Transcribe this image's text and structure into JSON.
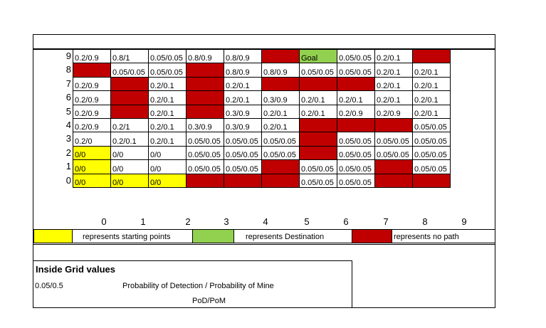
{
  "grid": {
    "rows": [
      {
        "label": "9",
        "cells": [
          {
            "t": "0.2/0.9",
            "c": ""
          },
          {
            "t": "0.8/1",
            "c": ""
          },
          {
            "t": "0.05/0.05",
            "c": ""
          },
          {
            "t": "0.8/0.9",
            "c": ""
          },
          {
            "t": "0.8/0.9",
            "c": ""
          },
          {
            "t": "",
            "c": "red"
          },
          {
            "t": "Goal",
            "c": "green"
          },
          {
            "t": "0.05/0.05",
            "c": ""
          },
          {
            "t": "0.2/0.1",
            "c": ""
          },
          {
            "t": "",
            "c": "red"
          }
        ]
      },
      {
        "label": "8",
        "cells": [
          {
            "t": "",
            "c": "red"
          },
          {
            "t": "0.05/0.05",
            "c": ""
          },
          {
            "t": "0.05/0.05",
            "c": ""
          },
          {
            "t": "",
            "c": "red"
          },
          {
            "t": "0.8/0.9",
            "c": ""
          },
          {
            "t": "0.8/0.9",
            "c": ""
          },
          {
            "t": "0.05/0.05",
            "c": ""
          },
          {
            "t": "0.05/0.05",
            "c": ""
          },
          {
            "t": "0.2/0.1",
            "c": ""
          },
          {
            "t": "0.2/0.1",
            "c": ""
          }
        ]
      },
      {
        "label": "7",
        "cells": [
          {
            "t": "0.2/0.9",
            "c": ""
          },
          {
            "t": "",
            "c": "red"
          },
          {
            "t": "0.2/0.1",
            "c": ""
          },
          {
            "t": "",
            "c": "red"
          },
          {
            "t": "0.2/0.1",
            "c": ""
          },
          {
            "t": "",
            "c": "red"
          },
          {
            "t": "",
            "c": "red"
          },
          {
            "t": "",
            "c": "red"
          },
          {
            "t": "0.2/0.1",
            "c": ""
          },
          {
            "t": "0.2/0.1",
            "c": ""
          }
        ]
      },
      {
        "label": "6",
        "cells": [
          {
            "t": "0.2/0.9",
            "c": ""
          },
          {
            "t": "",
            "c": "red"
          },
          {
            "t": "0.2/0.1",
            "c": ""
          },
          {
            "t": "",
            "c": "red"
          },
          {
            "t": "0.2/0.1",
            "c": ""
          },
          {
            "t": "0.3/0.9",
            "c": ""
          },
          {
            "t": "0.2/0.1",
            "c": ""
          },
          {
            "t": "0.2/0.1",
            "c": ""
          },
          {
            "t": "0.2/0.1",
            "c": ""
          },
          {
            "t": "0.2/0.1",
            "c": ""
          }
        ]
      },
      {
        "label": "5",
        "cells": [
          {
            "t": "0.2/0.9",
            "c": ""
          },
          {
            "t": "",
            "c": "red"
          },
          {
            "t": "0.2/0.1",
            "c": ""
          },
          {
            "t": "",
            "c": "red"
          },
          {
            "t": "0.3/0.9",
            "c": ""
          },
          {
            "t": "0.2/0.1",
            "c": ""
          },
          {
            "t": "0.2/0.1",
            "c": ""
          },
          {
            "t": "0.2/0.9",
            "c": ""
          },
          {
            "t": "0.2/0.9",
            "c": ""
          },
          {
            "t": "0.2/0.1",
            "c": ""
          }
        ]
      },
      {
        "label": "4",
        "cells": [
          {
            "t": "0.2/0.9",
            "c": ""
          },
          {
            "t": "0.2/1",
            "c": ""
          },
          {
            "t": "0.2/0.1",
            "c": ""
          },
          {
            "t": "0.3/0.9",
            "c": ""
          },
          {
            "t": "0.3/0.9",
            "c": ""
          },
          {
            "t": "0.2/0.1",
            "c": ""
          },
          {
            "t": "",
            "c": "red"
          },
          {
            "t": "",
            "c": "red"
          },
          {
            "t": "",
            "c": "red"
          },
          {
            "t": "0.05/0.05",
            "c": ""
          }
        ]
      },
      {
        "label": "3",
        "cells": [
          {
            "t": "0.2/0",
            "c": ""
          },
          {
            "t": "0.2/0.1",
            "c": ""
          },
          {
            "t": "0.2/0.1",
            "c": ""
          },
          {
            "t": "0.05/0.05",
            "c": ""
          },
          {
            "t": "0.05/0.05",
            "c": ""
          },
          {
            "t": "0.05/0.05",
            "c": ""
          },
          {
            "t": "",
            "c": "red"
          },
          {
            "t": "0.05/0.05",
            "c": ""
          },
          {
            "t": "0.05/0.05",
            "c": ""
          },
          {
            "t": "0.05/0.05",
            "c": ""
          }
        ]
      },
      {
        "label": "2",
        "cells": [
          {
            "t": "0/0",
            "c": "yellow"
          },
          {
            "t": "0/0",
            "c": ""
          },
          {
            "t": "0/0",
            "c": ""
          },
          {
            "t": "0.05/0.05",
            "c": ""
          },
          {
            "t": "0.05/0.05",
            "c": ""
          },
          {
            "t": "0.05/0.05",
            "c": ""
          },
          {
            "t": "",
            "c": "red"
          },
          {
            "t": "0.05/0.05",
            "c": ""
          },
          {
            "t": "0.05/0.05",
            "c": ""
          },
          {
            "t": "0.05/0.05",
            "c": ""
          }
        ]
      },
      {
        "label": "1",
        "cells": [
          {
            "t": "0/0",
            "c": "yellow"
          },
          {
            "t": "0/0",
            "c": ""
          },
          {
            "t": "0/0",
            "c": ""
          },
          {
            "t": "0.05/0.05",
            "c": ""
          },
          {
            "t": "0.05/0.05",
            "c": ""
          },
          {
            "t": "",
            "c": "red"
          },
          {
            "t": "0.05/0.05",
            "c": ""
          },
          {
            "t": "0.05/0.05",
            "c": ""
          },
          {
            "t": "",
            "c": "red"
          },
          {
            "t": "0.05/0.05",
            "c": ""
          }
        ]
      },
      {
        "label": "0",
        "cells": [
          {
            "t": "0/0",
            "c": "yellow"
          },
          {
            "t": "0/0",
            "c": "yellow"
          },
          {
            "t": "0/0",
            "c": "yellow"
          },
          {
            "t": "",
            "c": "red"
          },
          {
            "t": "",
            "c": "red"
          },
          {
            "t": "",
            "c": "red"
          },
          {
            "t": "0.05/0.05",
            "c": ""
          },
          {
            "t": "0.05/0.05",
            "c": ""
          },
          {
            "t": "",
            "c": "red"
          },
          {
            "t": "",
            "c": "red"
          }
        ]
      }
    ],
    "col_labels": [
      "0",
      "1",
      "2",
      "3",
      "4",
      "5",
      "6",
      "7",
      "8",
      "9"
    ]
  },
  "legend": {
    "start_text": "represents starting points",
    "dest_text": "represents Destination",
    "nopath_text": "represents no path"
  },
  "info": {
    "heading": "Inside Grid values",
    "example": "0.05/0.5",
    "description": "Probability of Detection / Probability of Mine",
    "abbrev": "PoD/PoM"
  },
  "colors": {
    "red": "#c00000",
    "yellow": "#ffff00",
    "green": "#92d050"
  }
}
